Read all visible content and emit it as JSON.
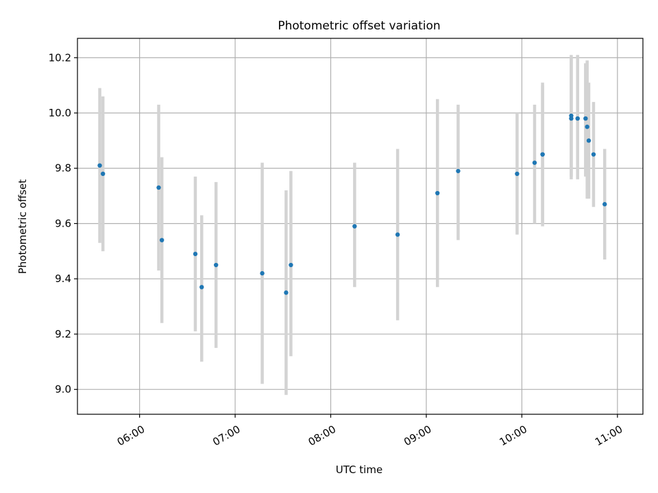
{
  "chart_data": {
    "type": "scatter",
    "title": "Photometric offset variation",
    "xlabel": "UTC time",
    "ylabel": "Photometric offset",
    "xlim": [
      "05:21",
      "11:16"
    ],
    "ylim": [
      8.91,
      10.27
    ],
    "x_ticks": [
      "06:00",
      "07:00",
      "08:00",
      "09:00",
      "10:00",
      "11:00"
    ],
    "y_ticks": [
      "9.0",
      "9.2",
      "9.4",
      "9.6",
      "9.8",
      "10.0",
      "10.2"
    ],
    "grid": true,
    "point_color": "#1f77b4",
    "errorbar_color": "#d3d3d3",
    "points": [
      {
        "t": "05:35",
        "y": 9.81,
        "lo": 9.53,
        "hi": 10.09
      },
      {
        "t": "05:37",
        "y": 9.78,
        "lo": 9.5,
        "hi": 10.06
      },
      {
        "t": "06:12",
        "y": 9.73,
        "lo": 9.43,
        "hi": 10.03
      },
      {
        "t": "06:14",
        "y": 9.54,
        "lo": 9.24,
        "hi": 9.84
      },
      {
        "t": "06:35",
        "y": 9.49,
        "lo": 9.21,
        "hi": 9.77
      },
      {
        "t": "06:39",
        "y": 9.37,
        "lo": 9.1,
        "hi": 9.63
      },
      {
        "t": "06:48",
        "y": 9.45,
        "lo": 9.15,
        "hi": 9.75
      },
      {
        "t": "07:17",
        "y": 9.42,
        "lo": 9.02,
        "hi": 9.82
      },
      {
        "t": "07:32",
        "y": 9.35,
        "lo": 8.98,
        "hi": 9.72
      },
      {
        "t": "07:35",
        "y": 9.45,
        "lo": 9.12,
        "hi": 9.79
      },
      {
        "t": "08:15",
        "y": 9.59,
        "lo": 9.37,
        "hi": 9.82
      },
      {
        "t": "08:42",
        "y": 9.56,
        "lo": 9.25,
        "hi": 9.87
      },
      {
        "t": "09:07",
        "y": 9.71,
        "lo": 9.37,
        "hi": 10.05
      },
      {
        "t": "09:20",
        "y": 9.79,
        "lo": 9.54,
        "hi": 10.03
      },
      {
        "t": "09:57",
        "y": 9.78,
        "lo": 9.56,
        "hi": 10.0
      },
      {
        "t": "10:08",
        "y": 9.82,
        "lo": 9.6,
        "hi": 10.03
      },
      {
        "t": "10:13",
        "y": 9.85,
        "lo": 9.6,
        "hi": 10.11
      },
      {
        "t": "10:13",
        "y": 9.85,
        "lo": 9.59,
        "hi": 10.1
      },
      {
        "t": "10:31",
        "y": 9.99,
        "lo": 9.77,
        "hi": 10.21
      },
      {
        "t": "10:31",
        "y": 9.98,
        "lo": 9.76,
        "hi": 10.2
      },
      {
        "t": "10:35",
        "y": 9.98,
        "lo": 9.76,
        "hi": 10.21
      },
      {
        "t": "10:40",
        "y": 9.98,
        "lo": 9.77,
        "hi": 10.18
      },
      {
        "t": "10:41",
        "y": 9.95,
        "lo": 9.69,
        "hi": 10.19
      },
      {
        "t": "10:42",
        "y": 9.9,
        "lo": 9.69,
        "hi": 10.11
      },
      {
        "t": "10:45",
        "y": 9.85,
        "lo": 9.66,
        "hi": 10.04
      },
      {
        "t": "10:52",
        "y": 9.67,
        "lo": 9.47,
        "hi": 9.87
      }
    ]
  }
}
